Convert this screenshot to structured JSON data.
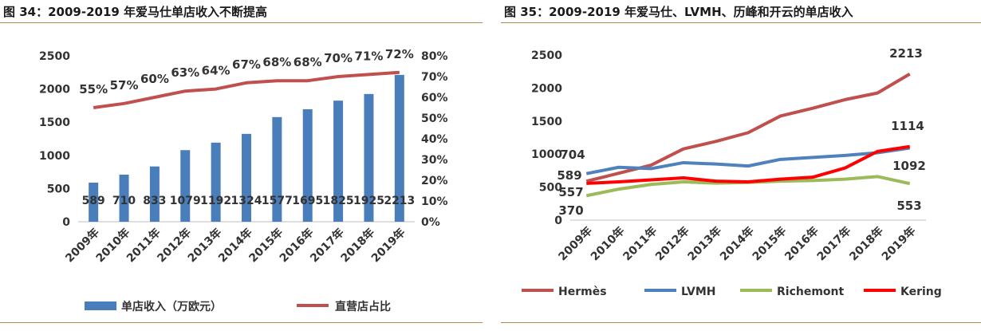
{
  "charts": [
    {
      "figure_title": "图 34：2009-2019 年爱马仕单店收入不断提高",
      "chart_data": {
        "type": "bar",
        "categories": [
          "2009年",
          "2010年",
          "2011年",
          "2012年",
          "2013年",
          "2014年",
          "2015年",
          "2016年",
          "2017年",
          "2018年",
          "2019年"
        ],
        "series": [
          {
            "name": "单店收入（万欧元）",
            "type": "bar",
            "axis": "left",
            "color": "#4a7ebb",
            "values": [
              589,
              710,
              833,
              1079,
              1192,
              1324,
              1577,
              1695,
              1825,
              1925,
              2213
            ],
            "labels": [
              "589",
              "710",
              "833",
              "1079",
              "1192",
              "1324",
              "1577",
              "1695",
              "1825",
              "1925",
              "2213"
            ]
          },
          {
            "name": "直营店占比",
            "type": "line",
            "axis": "right",
            "color": "#c0504d",
            "values": [
              55,
              57,
              60,
              63,
              64,
              67,
              68,
              68,
              70,
              71,
              72
            ],
            "labels": [
              "55%",
              "57%",
              "60%",
              "63%",
              "64%",
              "67%",
              "68%",
              "68%",
              "70%",
              "71%",
              "72%"
            ]
          }
        ],
        "y_left": {
          "min": 0,
          "max": 2500,
          "ticks": [
            0,
            500,
            1000,
            1500,
            2000,
            2500
          ],
          "tick_labels": [
            "0",
            "500",
            "1000",
            "1500",
            "2000",
            "2500"
          ]
        },
        "y_right": {
          "min": 0,
          "max": 80,
          "ticks": [
            0,
            10,
            20,
            30,
            40,
            50,
            60,
            70,
            80
          ],
          "tick_labels": [
            "0%",
            "10%",
            "20%",
            "30%",
            "40%",
            "50%",
            "60%",
            "70%",
            "80%"
          ]
        },
        "grid": false,
        "legend": "bottom"
      }
    },
    {
      "figure_title": "图 35：2009-2019 年爱马仕、LVMH、历峰和开云的单店收入",
      "chart_data": {
        "type": "line",
        "categories": [
          "2009年",
          "2010年",
          "2011年",
          "2012年",
          "2013年",
          "2014年",
          "2015年",
          "2016年",
          "2017年",
          "2018年",
          "2019年"
        ],
        "series": [
          {
            "name": "Hermès",
            "color": "#c0504d",
            "values": [
              589,
              710,
              833,
              1079,
              1192,
              1324,
              1577,
              1695,
              1825,
              1925,
              2213
            ]
          },
          {
            "name": "LVMH",
            "color": "#4f81bd",
            "values": [
              704,
              800,
              780,
              870,
              850,
              820,
              920,
              950,
              980,
              1020,
              1092
            ]
          },
          {
            "name": "Richemont",
            "color": "#9bbb59",
            "values": [
              370,
              470,
              540,
              580,
              560,
              570,
              590,
              600,
              620,
              660,
              553
            ]
          },
          {
            "name": "Kering",
            "color": "#ff0000",
            "values": [
              557,
              580,
              610,
              640,
              590,
              580,
              620,
              650,
              790,
              1040,
              1114
            ]
          }
        ],
        "annotations": [
          "704",
          "589",
          "557",
          "370",
          "2213",
          "1114",
          "1092",
          "553"
        ],
        "y": {
          "min": 0,
          "max": 2500,
          "ticks": [
            0,
            500,
            1000,
            1500,
            2000,
            2500
          ],
          "tick_labels": [
            "0",
            "500",
            "1000",
            "1500",
            "2000",
            "2500"
          ]
        },
        "grid": false,
        "legend": "bottom"
      }
    }
  ]
}
